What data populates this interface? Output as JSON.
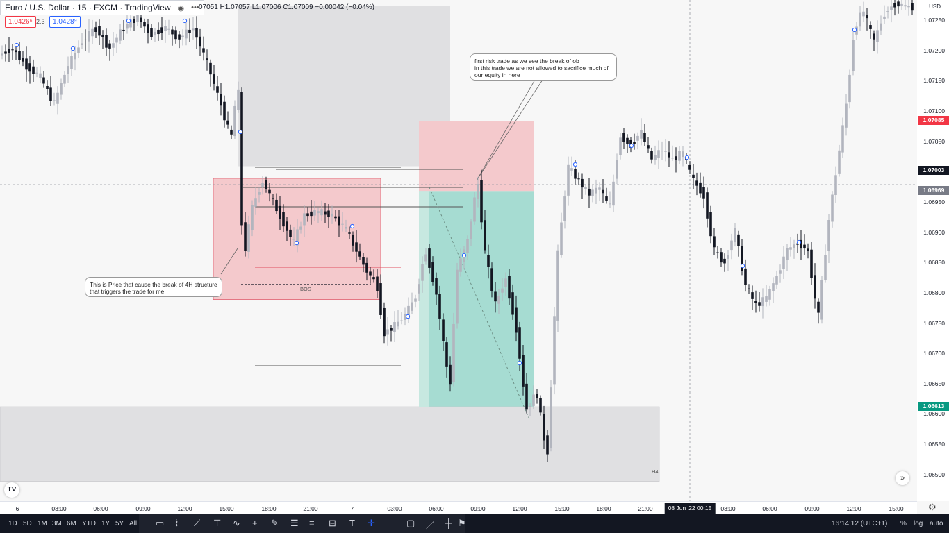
{
  "header": {
    "symbol": "Euro / U.S. Dollar · 15 · FXCM · TradingView",
    "ohlc": "07051  H1.07057  L1.07006  C1.07009  −0.00042 (−0.04%)",
    "sell_price": "1.0426⁶",
    "spread": "2.3",
    "buy_price": "1.0428⁹",
    "icons": [
      "eye-icon",
      "more-icon"
    ]
  },
  "chart_data": {
    "type": "candlestick",
    "symbol": "EURUSD",
    "timeframe": "15",
    "ylim": [
      1.0649,
      1.0732
    ],
    "price_ticks": [
      "1.07250",
      "1.07200",
      "1.07150",
      "1.07100",
      "1.07050",
      "1.07000",
      "1.06950",
      "1.06900",
      "1.06850",
      "1.06800",
      "1.06750",
      "1.06700",
      "1.06650",
      "1.06600",
      "1.06550",
      "1.06500"
    ],
    "time_ticks": [
      "6",
      "03:00",
      "06:00",
      "09:00",
      "12:00",
      "15:00",
      "18:00",
      "21:00",
      "7",
      "03:00",
      "06:00",
      "09:00",
      "12:00",
      "15:00",
      "18:00",
      "21:00",
      "03:00",
      "06:00",
      "09:00",
      "12:00",
      "15:00"
    ],
    "crosshair_time": "08 Jun '22   00:15",
    "price_tags": [
      {
        "label": "1.07085",
        "price": 1.07085,
        "color": "#f23645"
      },
      {
        "label": "1.07003",
        "price": 1.07003,
        "color": "#131722"
      },
      {
        "label": "1.06969",
        "price": 1.06969,
        "color": "#787b86"
      },
      {
        "label": "1.06613",
        "price": 1.06613,
        "color": "#089981"
      }
    ],
    "currency": "USD",
    "annotations": [
      {
        "kind": "note",
        "text": "first risk trade as we see the break of ob\nin this trade we are not allowed to sacrifice much of\nour equity in here"
      },
      {
        "kind": "note",
        "text": "This is Price that cause the break of 4H structure\nthat triggers the trade  for me"
      },
      {
        "kind": "label",
        "text": "BOS"
      },
      {
        "kind": "label",
        "text": "H4"
      }
    ],
    "zones": [
      {
        "kind": "supply",
        "top": 1.07275,
        "bottom": 1.0701,
        "color": "#e0e0e2"
      },
      {
        "kind": "order-block",
        "top": 1.0699,
        "bottom": 1.0679,
        "color": "#f4c9cc"
      },
      {
        "kind": "stop",
        "top": 1.07085,
        "bottom": 1.06969,
        "color": "#f4c9cc"
      },
      {
        "kind": "target",
        "top": 1.06969,
        "bottom": 1.06613,
        "color": "#a6dcd2"
      },
      {
        "kind": "H4-demand",
        "top": 1.06613,
        "bottom": 1.0649,
        "color": "#e0e0e2"
      }
    ]
  },
  "bottom_bar": {
    "ranges": [
      "1D",
      "5D",
      "1M",
      "3M",
      "6M",
      "YTD",
      "1Y",
      "5Y",
      "All"
    ],
    "tools": [
      "rectangle-icon",
      "path-icon",
      "line-icon",
      "crosshair-icon",
      "curve-icon",
      "cross-icon",
      "brush-icon",
      "pattern-icon",
      "fib-icon",
      "position-icon",
      "text-icon",
      "cursor-icon",
      "measure-icon",
      "comment-icon",
      "ruler-icon",
      "marker-icon",
      "flag-icon"
    ],
    "clock": "16:14:12 (UTC+1)",
    "options": [
      "%",
      "log",
      "auto"
    ]
  }
}
